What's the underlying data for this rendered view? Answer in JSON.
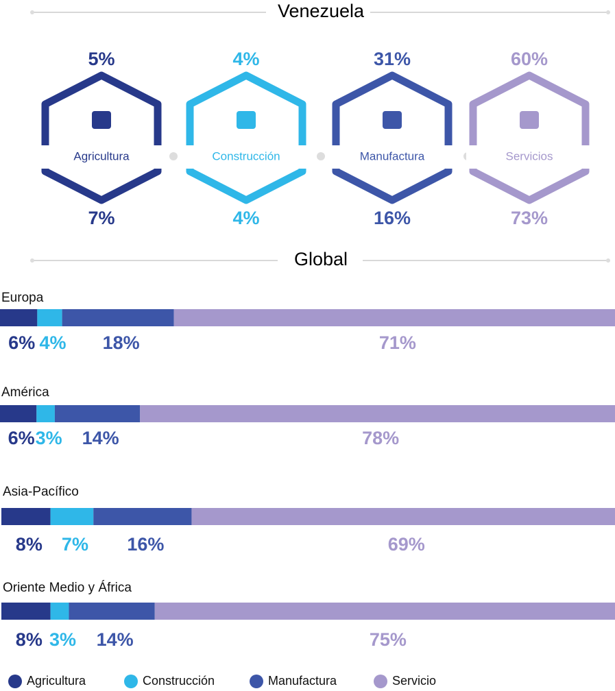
{
  "venezuela": {
    "title": "Venezuela",
    "sectors": [
      {
        "name": "Agricultura",
        "color": "#27398a",
        "top": 5,
        "top_label": "5%",
        "bottom": 7,
        "bottom_label": "7%"
      },
      {
        "name": "Construcción",
        "color": "#2fb7e8",
        "top": 4,
        "top_label": "4%",
        "bottom": 4,
        "bottom_label": "4%"
      },
      {
        "name": "Manufactura",
        "color": "#3d56a8",
        "top": 31,
        "top_label": "31%",
        "bottom": 16,
        "bottom_label": "16%"
      },
      {
        "name": "Servicios",
        "color": "#a598cc",
        "top": 60,
        "top_label": "60%",
        "bottom": 73,
        "bottom_label": "73%"
      }
    ]
  },
  "chart_data": {
    "type": "stacked-bar",
    "title": "Global",
    "categories": [
      "Europa",
      "América",
      "Asia-Pacífico",
      "Oriente Medio y África"
    ],
    "series": [
      {
        "name": "Agricultura",
        "color": "#27398a",
        "values": [
          6,
          6,
          8,
          8
        ],
        "value_labels": [
          "6%",
          "6%",
          "8%",
          "8%"
        ]
      },
      {
        "name": "Construcción",
        "color": "#2fb7e8",
        "values": [
          4,
          3,
          7,
          3
        ],
        "value_labels": [
          "4%",
          "3%",
          "7%",
          "3%"
        ]
      },
      {
        "name": "Manufactura",
        "color": "#3d56a8",
        "values": [
          18,
          14,
          16,
          14
        ],
        "value_labels": [
          "18%",
          "14%",
          "16%",
          "14%"
        ]
      },
      {
        "name": "Servicio",
        "color": "#a598cc",
        "values": [
          71,
          78,
          69,
          75
        ],
        "value_labels": [
          "71%",
          "78%",
          "69%",
          "75%"
        ]
      }
    ]
  }
}
